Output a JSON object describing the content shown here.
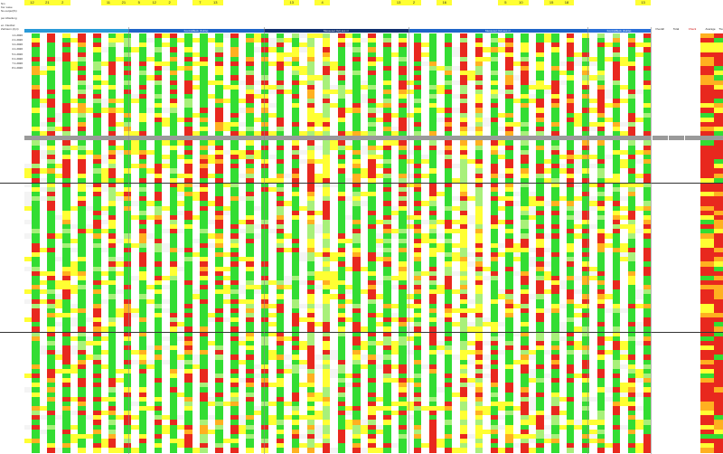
{
  "sheet": {
    "top_left_lines": [
      "Nm",
      "Kw. wave",
      "No.output(%)",
      "",
      "per.Abteilung",
      "",
      "en. Flexibel",
      "Zeitraum (dyn)"
    ],
    "column_numbers": [
      "12",
      "21",
      "2",
      "",
      "",
      "11",
      "21",
      "5",
      "12",
      "2",
      "",
      "7",
      "13",
      "",
      "",
      "",
      "",
      "13",
      "",
      "4",
      "",
      "",
      "",
      "",
      "13",
      "2",
      "",
      "16",
      "",
      "",
      "",
      "5",
      "10",
      "",
      "15",
      "18",
      "",
      "",
      "",
      "",
      "13"
    ],
    "group_labels": [
      "Kontrollfleck (Kuhle)",
      "Messeset (Ist) aus nr",
      "Messeset (Ist) aus nr",
      "Kontrollfleck (Kuhle)"
    ],
    "summary_headers": [
      "Overall",
      "Total",
      "Check",
      "Average",
      "Trendy"
    ],
    "row_dates_sample": [
      "1.1.2020",
      "2.1.2020",
      "3.1.2020",
      "4.1.2020",
      "5.1.2020",
      "6.1.2020",
      "7.1.2020",
      "8.1.2020"
    ],
    "colors": {
      "green": "#33dd33",
      "light_green": "#a8f07a",
      "yellow": "#ffff33",
      "orange": "#ffb020",
      "red": "#e8281e",
      "header_blue": "#1e64c8",
      "header_dark": "#103070",
      "gray_row": "#9a9a9a"
    }
  }
}
